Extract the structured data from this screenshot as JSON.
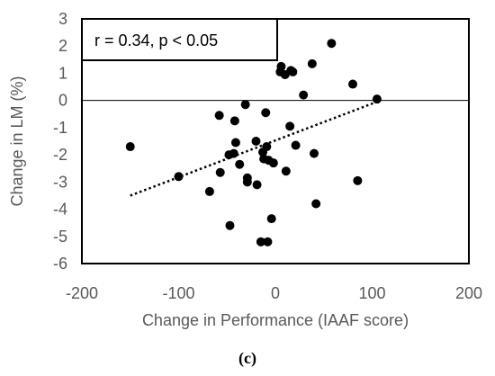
{
  "caption": "(c)",
  "chart_data": {
    "type": "scatter",
    "xlabel": "Change in Performance (IAAF score)",
    "ylabel": "Change in LM (%)",
    "xlim": [
      -200,
      200
    ],
    "ylim": [
      -6,
      3
    ],
    "x_ticks": [
      "-200",
      "-100",
      "0",
      "100",
      "200"
    ],
    "y_ticks": [
      "3",
      "2",
      "1",
      "0",
      "-1",
      "-2",
      "-3",
      "-4",
      "-5",
      "-6"
    ],
    "grid": false,
    "annotation": "r = 0.34, p < 0.05",
    "trendline": {
      "style": "dotted",
      "x": [
        -150,
        105
      ],
      "y": [
        -3.5,
        -0.05
      ]
    },
    "points": [
      {
        "x": -150,
        "y": -1.7
      },
      {
        "x": -100,
        "y": -2.8
      },
      {
        "x": -68,
        "y": -3.35
      },
      {
        "x": -58,
        "y": -0.55
      },
      {
        "x": -57,
        "y": -2.65
      },
      {
        "x": -48,
        "y": -2.0
      },
      {
        "x": -47,
        "y": -4.6
      },
      {
        "x": -43,
        "y": -1.95
      },
      {
        "x": -42,
        "y": -0.75
      },
      {
        "x": -41,
        "y": -1.55
      },
      {
        "x": -37,
        "y": -2.35
      },
      {
        "x": -31,
        "y": -0.15
      },
      {
        "x": -29,
        "y": -2.85
      },
      {
        "x": -29,
        "y": -3.0
      },
      {
        "x": -20,
        "y": -1.5
      },
      {
        "x": -19,
        "y": -3.1
      },
      {
        "x": -15,
        "y": -5.2
      },
      {
        "x": -13,
        "y": -1.9
      },
      {
        "x": -12,
        "y": -2.15
      },
      {
        "x": -10,
        "y": -0.45
      },
      {
        "x": -9,
        "y": -1.7
      },
      {
        "x": -8,
        "y": -5.2
      },
      {
        "x": -7,
        "y": -2.2
      },
      {
        "x": -4,
        "y": -4.35
      },
      {
        "x": -2,
        "y": -2.3
      },
      {
        "x": 5,
        "y": 1.05
      },
      {
        "x": 6,
        "y": 1.25
      },
      {
        "x": 10,
        "y": 0.95
      },
      {
        "x": 11,
        "y": -2.6
      },
      {
        "x": 15,
        "y": -0.95
      },
      {
        "x": 16,
        "y": 1.1
      },
      {
        "x": 18,
        "y": 1.05
      },
      {
        "x": 21,
        "y": -1.65
      },
      {
        "x": 29,
        "y": 0.2
      },
      {
        "x": 38,
        "y": 1.35
      },
      {
        "x": 40,
        "y": -1.95
      },
      {
        "x": 42,
        "y": -3.8
      },
      {
        "x": 58,
        "y": 2.1
      },
      {
        "x": 80,
        "y": 0.6
      },
      {
        "x": 85,
        "y": -2.95
      },
      {
        "x": 105,
        "y": 0.05
      }
    ]
  }
}
